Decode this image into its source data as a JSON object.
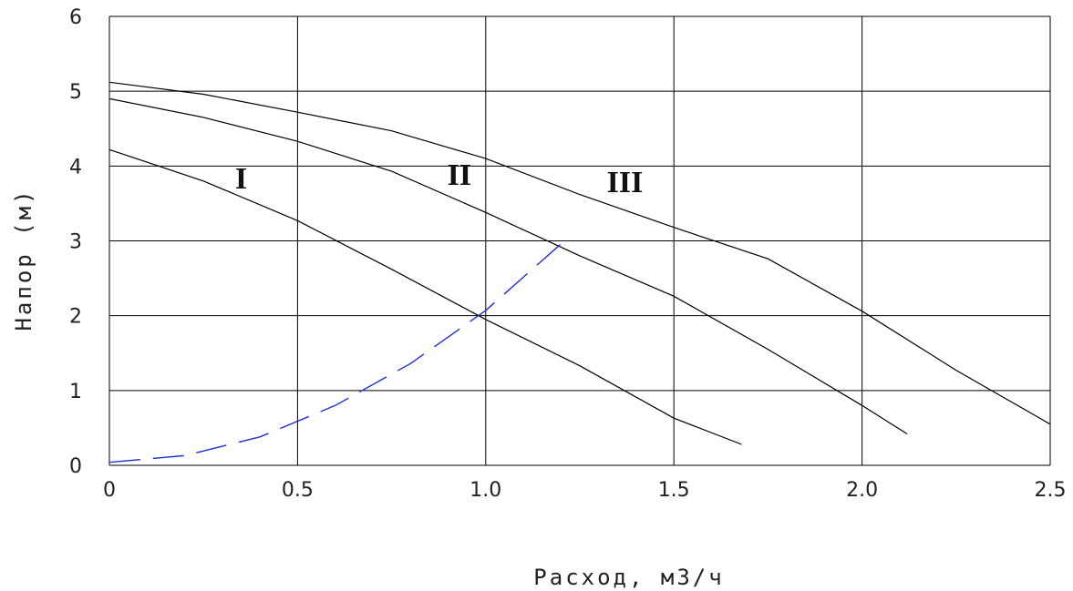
{
  "chart_data": {
    "type": "line",
    "xlabel": "Расход, м3/ч",
    "ylabel": "Напор (м)",
    "xlim": [
      0,
      2.5
    ],
    "ylim": [
      0,
      6
    ],
    "x_ticks": [
      "0",
      "0.5",
      "1.0",
      "1.5",
      "2.0",
      "2.5"
    ],
    "x_tick_values": [
      0,
      0.5,
      1.0,
      1.5,
      2.0,
      2.5
    ],
    "y_ticks": [
      "0",
      "1",
      "2",
      "3",
      "4",
      "5",
      "6"
    ],
    "y_tick_values": [
      0,
      1,
      2,
      3,
      4,
      5,
      6
    ],
    "grid": true,
    "series": [
      {
        "name": "I",
        "color": "#000000",
        "style": "solid",
        "x": [
          0,
          0.25,
          0.5,
          0.75,
          1.0,
          1.25,
          1.5,
          1.68
        ],
        "y": [
          4.22,
          3.8,
          3.27,
          2.62,
          1.95,
          1.33,
          0.63,
          0.28
        ]
      },
      {
        "name": "II",
        "color": "#000000",
        "style": "solid",
        "x": [
          0,
          0.25,
          0.5,
          0.75,
          1.0,
          1.25,
          1.5,
          1.75,
          2.0,
          2.12
        ],
        "y": [
          4.9,
          4.65,
          4.33,
          3.93,
          3.38,
          2.8,
          2.26,
          1.55,
          0.8,
          0.42
        ]
      },
      {
        "name": "III",
        "color": "#000000",
        "style": "solid",
        "x": [
          0,
          0.25,
          0.5,
          0.75,
          1.0,
          1.25,
          1.5,
          1.75,
          2.0,
          2.25,
          2.5
        ],
        "y": [
          5.12,
          4.96,
          4.72,
          4.47,
          4.1,
          3.62,
          3.18,
          2.76,
          2.06,
          1.27,
          0.55
        ]
      },
      {
        "color": "#1f2fd6",
        "style": "dashed",
        "x": [
          0,
          0.2,
          0.4,
          0.6,
          0.8,
          1.0,
          1.2
        ],
        "y": [
          0.04,
          0.13,
          0.38,
          0.8,
          1.36,
          2.07,
          2.96
        ]
      }
    ],
    "curve_labels": [
      {
        "text": "I",
        "x": 0.35,
        "y": 3.7
      },
      {
        "text": "II",
        "x": 0.93,
        "y": 3.75
      },
      {
        "text": "III",
        "x": 1.37,
        "y": 3.65
      }
    ]
  }
}
